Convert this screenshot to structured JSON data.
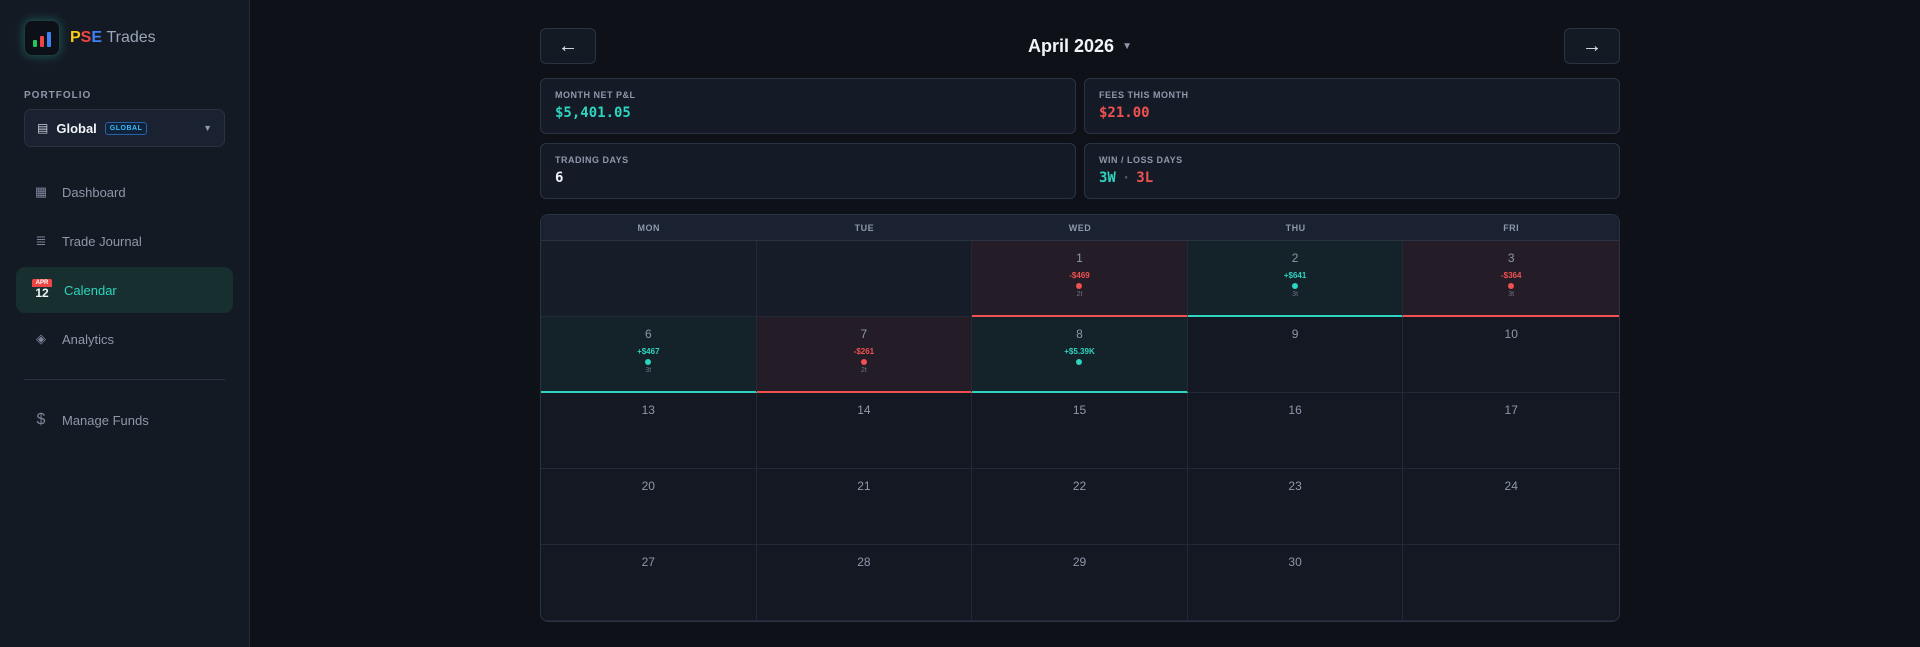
{
  "brand": {
    "p": "P",
    "s": "S",
    "e": "E",
    "rest": "Trades"
  },
  "sidebar": {
    "portfolio_label": "PORTFOLIO",
    "portfolio": {
      "name": "Global",
      "badge": "GLOBAL"
    },
    "items": [
      {
        "label": "Dashboard",
        "icon": "grid-icon"
      },
      {
        "label": "Trade Journal",
        "icon": "journal-icon"
      },
      {
        "label": "Calendar",
        "icon": "calendar-icon",
        "active": true,
        "icon_month": "APR",
        "icon_day": "12"
      },
      {
        "label": "Analytics",
        "icon": "diamond-icon"
      },
      {
        "label": "Manage Funds",
        "icon": "dollar-icon"
      }
    ]
  },
  "header": {
    "prev": "←",
    "next": "→",
    "month": "April 2026"
  },
  "stats": {
    "net_label": "MONTH NET P&L",
    "net_value": "$5,401.05",
    "fees_label": "FEES THIS MONTH",
    "fees_value": "$21.00",
    "days_label": "TRADING DAYS",
    "days_value": "6",
    "winloss_label": "WIN / LOSS DAYS",
    "win_value": "3W",
    "sep": "·",
    "loss_value": "3L"
  },
  "calendar": {
    "weekdays": [
      "MON",
      "TUE",
      "WED",
      "THU",
      "FRI"
    ],
    "cells": [
      {
        "day": "",
        "type": "empty"
      },
      {
        "day": "",
        "type": "empty"
      },
      {
        "day": "1",
        "type": "loss",
        "pnl": "-$469",
        "trades": "2t"
      },
      {
        "day": "2",
        "type": "win",
        "pnl": "+$641",
        "trades": "3t"
      },
      {
        "day": "3",
        "type": "loss",
        "pnl": "-$364",
        "trades": "3t"
      },
      {
        "day": "6",
        "type": "win",
        "pnl": "+$467",
        "trades": "3t"
      },
      {
        "day": "7",
        "type": "loss",
        "pnl": "-$261",
        "trades": "2t"
      },
      {
        "day": "8",
        "type": "win",
        "pnl": "+$5.39K",
        "trades": ""
      },
      {
        "day": "9",
        "type": "none"
      },
      {
        "day": "10",
        "type": "none"
      },
      {
        "day": "13",
        "type": "none"
      },
      {
        "day": "14",
        "type": "none"
      },
      {
        "day": "15",
        "type": "none"
      },
      {
        "day": "16",
        "type": "none"
      },
      {
        "day": "17",
        "type": "none"
      },
      {
        "day": "20",
        "type": "none"
      },
      {
        "day": "21",
        "type": "none"
      },
      {
        "day": "22",
        "type": "none"
      },
      {
        "day": "23",
        "type": "none"
      },
      {
        "day": "24",
        "type": "none"
      },
      {
        "day": "27",
        "type": "none"
      },
      {
        "day": "28",
        "type": "none"
      },
      {
        "day": "29",
        "type": "none"
      },
      {
        "day": "30",
        "type": "none"
      },
      {
        "day": "",
        "type": "none"
      }
    ]
  }
}
